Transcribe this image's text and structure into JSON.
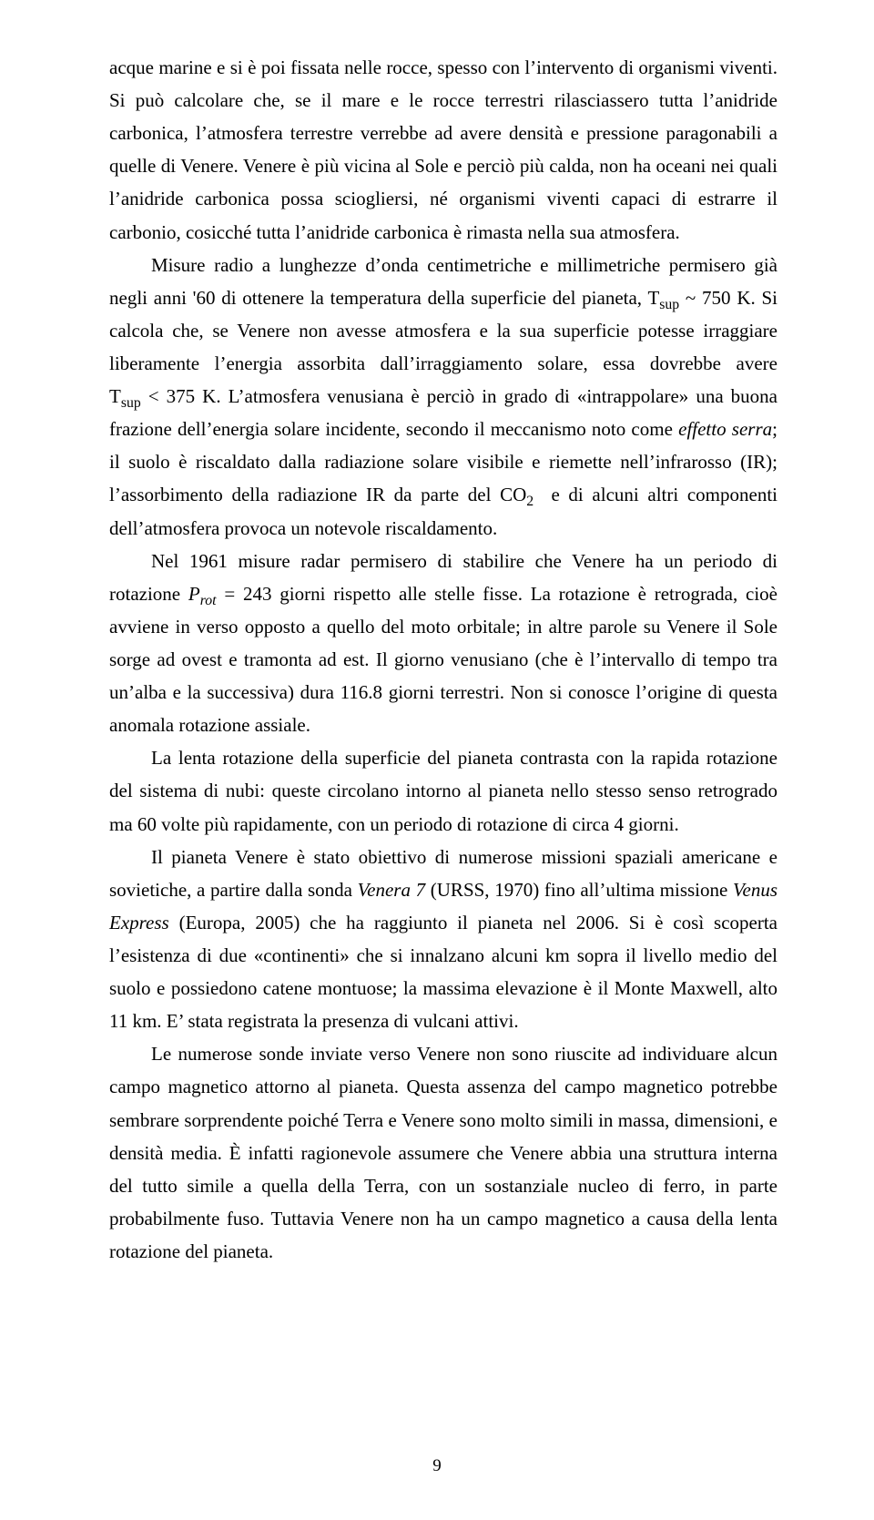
{
  "page_number": "9",
  "text_color": "#000000",
  "background_color": "#ffffff",
  "font_family": "Times New Roman",
  "body_font_size_pt": 16,
  "paragraphs": {
    "p1": "acque marine e si è poi fissata nelle rocce, spesso con l’intervento di organismi viventi. Si può calcolare che, se il mare e le rocce terrestri rilasciassero tutta l’anidride carbonica, l’atmosfera terrestre verrebbe ad avere densità e pressione paragonabili a quelle di Venere. Venere è più vicina al Sole e perciò più calda, non ha oceani nei quali l’anidride carbonica possa sciogliersi, né organismi viventi capaci di estrarre il carbonio, cosicché tutta l’anidride carbonica è rimasta nella sua atmosfera.",
    "p2_html": "Misure radio a lunghezze d’onda centimetriche e millimetriche permisero già negli anni '60 di ottenere la temperatura della superficie del pianeta, T<sub>sup</sub> ~ 750 K. Si calcola che, se Venere non avesse atmosfera e la sua superficie potesse irraggiare liberamente l’energia assorbita dall’irraggiamento solare, essa dovrebbe avere T<sub>sup</sub>&nbsp;&lt;&nbsp;375&nbsp;K. L’atmosfera venusiana è perciò in grado di «intrappolare» una buona frazione dell’energia solare incidente, secondo il meccanismo noto come <span class=\"italic\">effetto serra</span>; il suolo è riscaldato dalla radiazione solare visibile e riemette nell’infrarosso (IR); l’assorbimento della radiazione IR da parte del CO<sub>2</sub>&nbsp; e di alcuni altri componenti dell’atmosfera provoca un notevole riscaldamento.",
    "p3_html": "Nel 1961 misure radar permisero di stabilire che Venere ha un periodo di rotazione <span class=\"italic\">P<sub>rot</sub></span> = 243 giorni rispetto alle stelle fisse. La rotazione è retrograda, cioè avviene in verso opposto a quello del moto orbitale; in altre parole su Venere il Sole sorge ad ovest e tramonta ad est. Il giorno venusiano (che è l’intervallo di tempo tra un’alba e la successiva) dura 116.8 giorni terrestri. Non si conosce l’origine di questa anomala rotazione assiale.",
    "p4": "La lenta rotazione della superficie del pianeta contrasta con la rapida rotazione del sistema di nubi: queste circolano intorno al pianeta nello stesso senso retrogrado ma 60 volte più rapidamente, con un periodo di rotazione di circa 4 giorni.",
    "p5_html": "Il pianeta Venere è stato obiettivo di numerose missioni spaziali americane e sovietiche, a partire dalla sonda <span class=\"italic\">Venera 7</span> (URSS, 1970) fino all’ultima missione <span class=\"italic\">Venus Express</span> (Europa, 2005) che ha raggiunto il pianeta nel 2006. Si è così scoperta l’esistenza di due «continenti» che si innalzano alcuni km sopra il livello medio del suolo e possiedono catene montuose; la massima elevazione è il Monte Maxwell, alto 11 km. E’ stata registrata la presenza di vulcani attivi.",
    "p6": "Le numerose sonde inviate verso Venere non sono riuscite ad individuare alcun campo magnetico attorno al pianeta. Questa assenza del campo magnetico potrebbe sembrare sorprendente poiché Terra e Venere sono molto simili in massa, dimensioni, e densità media. È infatti ragionevole assumere che Venere abbia una struttura interna del tutto simile a quella della Terra, con un sostanziale nucleo di ferro, in parte probabilmente fuso. Tuttavia Venere non ha un campo magnetico a causa della lenta rotazione del pianeta."
  }
}
